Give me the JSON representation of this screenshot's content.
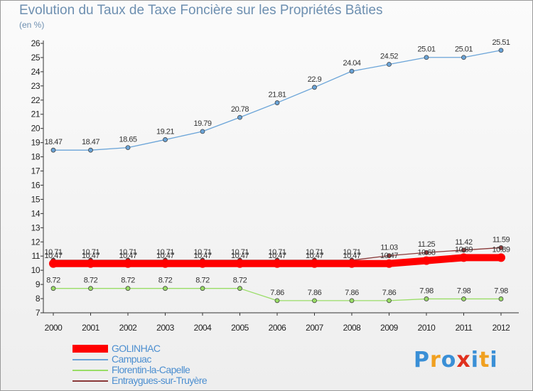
{
  "title": "Evolution du Taux de Taxe Foncière sur les Propriétés Bâties",
  "subtitle": "(en %)",
  "brand": {
    "letters": [
      "P",
      "r",
      "o",
      "x",
      "i",
      "t",
      "i"
    ],
    "colors": [
      "#3a8fd6",
      "#f0a020",
      "#3a8fd6",
      "#e0301e",
      "#3a8fd6",
      "#f0a020",
      "#3a8fd6"
    ]
  },
  "chart_data": {
    "type": "line",
    "title": "Evolution du Taux de Taxe Foncière sur les Propriétés Bâties",
    "ylabel": "(en %)",
    "xlabel": "",
    "x": [
      "2000",
      "2001",
      "2002",
      "2003",
      "2004",
      "2005",
      "2006",
      "2007",
      "2008",
      "2009",
      "2010",
      "2011",
      "2012"
    ],
    "ylim": [
      7,
      26
    ],
    "yticks": [
      "7",
      "8",
      "9",
      "10",
      "11",
      "12",
      "13",
      "14",
      "15",
      "16",
      "17",
      "18",
      "19",
      "20",
      "21",
      "22",
      "23",
      "24",
      "25",
      "26"
    ],
    "grid": false,
    "legend_position": "bottom-left",
    "series": [
      {
        "name": "GOLINHAC",
        "color": "#ff0000",
        "values": [
          10.47,
          10.47,
          10.47,
          10.47,
          10.47,
          10.47,
          10.47,
          10.47,
          10.47,
          10.47,
          10.68,
          10.89,
          10.89
        ],
        "labels": [
          "10.47",
          "10.47",
          "10.47",
          "10.47",
          "10.47",
          "10.47",
          "10.47",
          "10.47",
          "10.47",
          "10.47",
          "10.68",
          "10.89",
          "10.89"
        ]
      },
      {
        "name": "Campuac",
        "color": "#6aa4d8",
        "values": [
          18.47,
          18.47,
          18.65,
          19.21,
          19.79,
          20.78,
          21.81,
          22.9,
          24.04,
          24.52,
          25.01,
          25.01,
          25.51
        ],
        "labels": [
          "18.47",
          "18.47",
          "18.65",
          "19.21",
          "19.79",
          "20.78",
          "21.81",
          "22.9",
          "24.04",
          "24.52",
          "25.01",
          "25.01",
          "25.51"
        ]
      },
      {
        "name": "Florentin-la-Capelle",
        "color": "#99dd66",
        "values": [
          8.72,
          8.72,
          8.72,
          8.72,
          8.72,
          8.72,
          7.86,
          7.86,
          7.86,
          7.86,
          7.98,
          7.98,
          7.98
        ],
        "labels": [
          "8.72",
          "8.72",
          "8.72",
          "8.72",
          "8.72",
          "8.72",
          "7.86",
          "7.86",
          "7.86",
          "7.86",
          "7.98",
          "7.98",
          "7.98"
        ]
      },
      {
        "name": "Entraygues-sur-Truyère",
        "color": "#8a3a3a",
        "values": [
          10.71,
          10.71,
          10.71,
          10.71,
          10.71,
          10.71,
          10.71,
          10.71,
          10.71,
          11.03,
          11.25,
          11.42,
          11.59
        ],
        "labels": [
          "10.71",
          "10.71",
          "10.71",
          "10.71",
          "10.71",
          "10.71",
          "10.71",
          "10.71",
          "10.71",
          "11.03",
          "11.25",
          "11.42",
          "11.59"
        ]
      }
    ]
  }
}
